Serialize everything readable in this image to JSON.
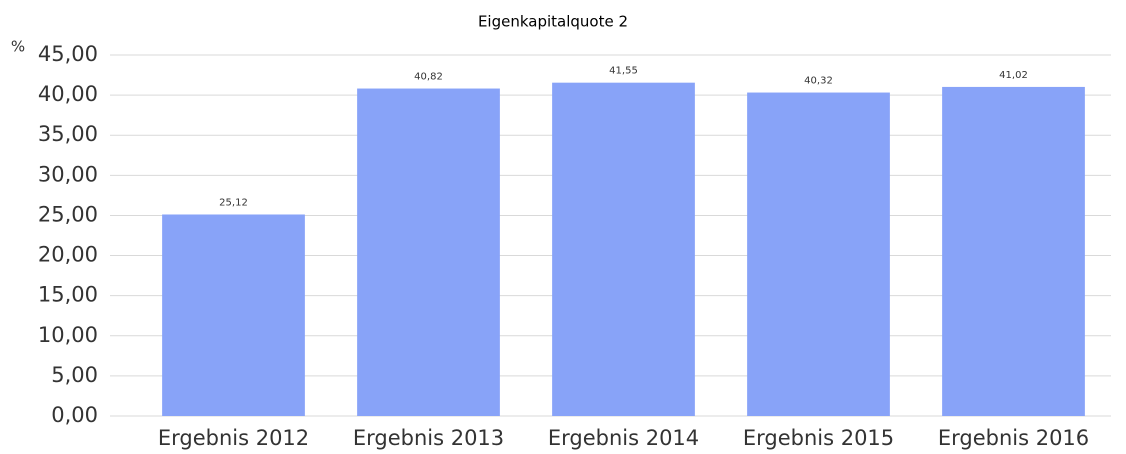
{
  "chart_data": {
    "type": "bar",
    "title": "Eigenkapitalquote 2",
    "y_label": "%",
    "categories": [
      "Ergebnis 2012",
      "Ergebnis 2013",
      "Ergebnis 2014",
      "Ergebnis 2015",
      "Ergebnis 2016"
    ],
    "values": [
      25.12,
      40.82,
      41.55,
      40.32,
      41.02
    ],
    "value_labels": [
      "25,12",
      "40,82",
      "41,55",
      "40,32",
      "41,02"
    ],
    "color": "#88a3f8",
    "ylim": [
      0,
      45
    ],
    "yticks": [
      {
        "value": 0,
        "label": "0,00"
      },
      {
        "value": 5,
        "label": "5,00"
      },
      {
        "value": 10,
        "label": "10,00"
      },
      {
        "value": 15,
        "label": "15,00"
      },
      {
        "value": 20,
        "label": "20,00"
      },
      {
        "value": 25,
        "label": "25,00"
      },
      {
        "value": 30,
        "label": "30,00"
      },
      {
        "value": 35,
        "label": "35,00"
      },
      {
        "value": 40,
        "label": "40,00"
      },
      {
        "value": 45,
        "label": "45,00"
      }
    ],
    "grid": true
  }
}
